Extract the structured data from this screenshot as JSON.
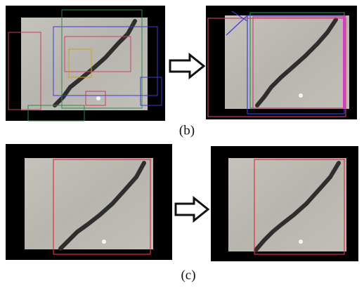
{
  "figure": {
    "panels": [
      {
        "label": "(b)"
      },
      {
        "label": "(c)"
      }
    ]
  }
}
